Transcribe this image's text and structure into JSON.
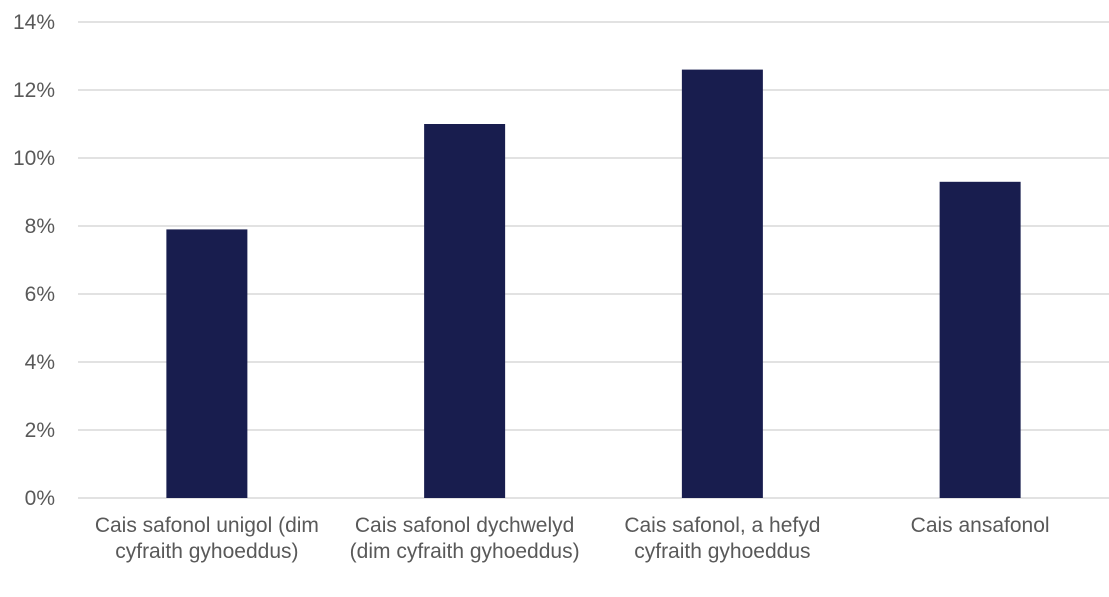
{
  "chart_data": {
    "type": "bar",
    "categories": [
      "Cais safonol unigol (dim cyfraith gyhoeddus)",
      "Cais safonol dychwelyd (dim cyfraith gyhoeddus)",
      "Cais safonol, a hefyd cyfraith gyhoeddus",
      "Cais ansafonol"
    ],
    "values": [
      7.9,
      11.0,
      12.6,
      9.3
    ],
    "ylim": [
      0,
      14
    ],
    "yticks": [
      "0%",
      "2%",
      "4%",
      "6%",
      "8%",
      "10%",
      "12%",
      "14%"
    ],
    "title": "",
    "xlabel": "",
    "ylabel": "",
    "grid": true,
    "bar_color": "#181d4e",
    "grid_color": "#d9d9d9",
    "text_color": "#595959"
  }
}
